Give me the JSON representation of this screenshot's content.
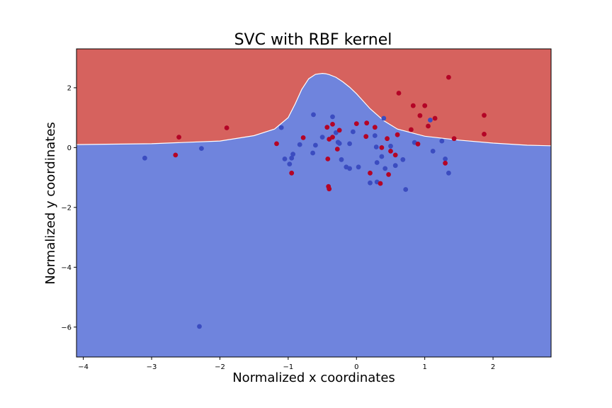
{
  "chart_data": {
    "type": "scatter",
    "title": "SVC with RBF kernel",
    "xlabel": "Normalized x coordinates",
    "ylabel": "Normalized y coordinates",
    "xlim": [
      -4.1,
      2.85
    ],
    "ylim": [
      -7.0,
      3.3
    ],
    "xticks": [
      -4,
      -3,
      -2,
      -1,
      0,
      1,
      2
    ],
    "yticks": [
      -6,
      -4,
      -2,
      0,
      2
    ],
    "grid": false,
    "legend": "none",
    "colors": {
      "region_class_0": "#6f84dd",
      "region_class_1": "#d6625e",
      "points_class_0": "#3b4cc0",
      "points_class_1": "#b40426",
      "boundary": "#ffffff"
    },
    "decision_boundary": {
      "x": [
        -4.1,
        -3.0,
        -2.0,
        -1.5,
        -1.2,
        -1.0,
        -0.9,
        -0.8,
        -0.7,
        -0.6,
        -0.5,
        -0.45,
        -0.4,
        -0.3,
        -0.2,
        -0.1,
        0.0,
        0.1,
        0.2,
        0.4,
        0.6,
        1.0,
        1.5,
        2.0,
        2.5,
        2.85
      ],
      "y": [
        0.1,
        0.13,
        0.22,
        0.4,
        0.62,
        1.0,
        1.45,
        1.95,
        2.3,
        2.45,
        2.48,
        2.47,
        2.44,
        2.35,
        2.2,
        2.02,
        1.8,
        1.55,
        1.3,
        0.9,
        0.62,
        0.38,
        0.25,
        0.15,
        0.08,
        0.06
      ]
    },
    "series": [
      {
        "points": [
          [
            -3.1,
            -0.35
          ],
          [
            -2.27,
            -0.03
          ],
          [
            -2.3,
            -5.98
          ],
          [
            -1.1,
            0.67
          ],
          [
            -1.05,
            -0.38
          ],
          [
            -0.98,
            -0.55
          ],
          [
            -0.95,
            -0.35
          ],
          [
            -0.93,
            -0.22
          ],
          [
            -0.83,
            0.1
          ],
          [
            -0.64,
            -0.18
          ],
          [
            -0.63,
            1.1
          ],
          [
            -0.6,
            0.08
          ],
          [
            -0.5,
            0.35
          ],
          [
            -0.35,
            1.03
          ],
          [
            -0.3,
            0.5
          ],
          [
            -0.27,
            0.18
          ],
          [
            -0.25,
            0.14
          ],
          [
            -0.22,
            -0.4
          ],
          [
            -0.15,
            -0.65
          ],
          [
            -0.1,
            0.13
          ],
          [
            -0.1,
            -0.7
          ],
          [
            -0.05,
            0.53
          ],
          [
            0.03,
            -0.65
          ],
          [
            0.2,
            -1.18
          ],
          [
            0.27,
            0.4
          ],
          [
            0.29,
            0.02
          ],
          [
            0.3,
            -1.15
          ],
          [
            0.3,
            -0.5
          ],
          [
            0.37,
            -0.3
          ],
          [
            0.4,
            0.98
          ],
          [
            0.42,
            -0.7
          ],
          [
            0.5,
            0.05
          ],
          [
            0.57,
            -0.6
          ],
          [
            0.68,
            -0.4
          ],
          [
            0.72,
            -1.4
          ],
          [
            0.85,
            0.17
          ],
          [
            1.08,
            0.92
          ],
          [
            1.12,
            -0.12
          ],
          [
            1.25,
            0.22
          ],
          [
            1.3,
            -0.38
          ],
          [
            1.35,
            -0.85
          ]
        ]
      },
      {
        "points": [
          [
            -2.6,
            0.35
          ],
          [
            -2.65,
            -0.25
          ],
          [
            -1.9,
            0.66
          ],
          [
            -1.17,
            0.13
          ],
          [
            -0.95,
            -0.85
          ],
          [
            -0.78,
            0.33
          ],
          [
            -0.43,
            0.68
          ],
          [
            -0.42,
            -0.38
          ],
          [
            -0.4,
            0.28
          ],
          [
            -0.41,
            -1.3
          ],
          [
            -0.4,
            -1.38
          ],
          [
            -0.35,
            0.78
          ],
          [
            -0.35,
            0.35
          ],
          [
            -0.28,
            -0.05
          ],
          [
            -0.25,
            0.58
          ],
          [
            0.0,
            0.8
          ],
          [
            0.14,
            0.37
          ],
          [
            0.15,
            0.82
          ],
          [
            0.2,
            -0.85
          ],
          [
            0.27,
            0.68
          ],
          [
            0.35,
            -1.2
          ],
          [
            0.37,
            0.0
          ],
          [
            0.45,
            0.3
          ],
          [
            0.47,
            -0.9
          ],
          [
            0.5,
            -0.12
          ],
          [
            0.57,
            -0.25
          ],
          [
            0.6,
            0.43
          ],
          [
            0.62,
            1.82
          ],
          [
            0.8,
            0.6
          ],
          [
            0.83,
            1.4
          ],
          [
            0.9,
            0.12
          ],
          [
            0.93,
            1.07
          ],
          [
            1.0,
            1.4
          ],
          [
            1.05,
            0.72
          ],
          [
            1.15,
            0.98
          ],
          [
            1.3,
            -0.52
          ],
          [
            1.35,
            2.35
          ],
          [
            1.43,
            0.3
          ],
          [
            1.87,
            1.08
          ],
          [
            1.87,
            0.45
          ]
        ]
      }
    ]
  }
}
